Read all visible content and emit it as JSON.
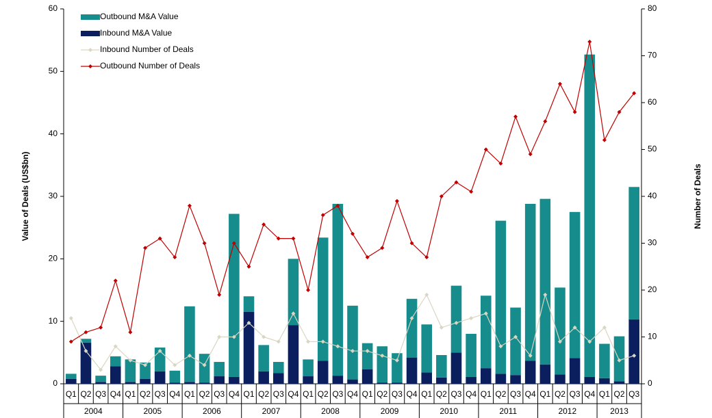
{
  "chart_data": {
    "type": "bar-line",
    "y_label": "Value of Deals (US$bn)",
    "y2_label": "Number of Deals",
    "categories": [
      "Q1",
      "Q2",
      "Q3",
      "Q4",
      "Q1",
      "Q2",
      "Q3",
      "Q4",
      "Q1",
      "Q2",
      "Q3",
      "Q4",
      "Q1",
      "Q2",
      "Q3",
      "Q4",
      "Q1",
      "Q2",
      "Q3",
      "Q4",
      "Q1",
      "Q2",
      "Q3",
      "Q4",
      "Q1",
      "Q2",
      "Q3",
      "Q4",
      "Q1",
      "Q2",
      "Q3",
      "Q4",
      "Q1",
      "Q2",
      "Q3",
      "Q4",
      "Q1",
      "Q2",
      "Q3"
    ],
    "category_groups": [
      "2004",
      "2005",
      "2006",
      "2007",
      "2008",
      "2009",
      "2010",
      "2011",
      "2012",
      "2013"
    ],
    "ylim": [
      0,
      60
    ],
    "yticks": [
      0,
      10,
      20,
      30,
      40,
      50,
      60
    ],
    "y2lim": [
      0,
      80
    ],
    "y2ticks": [
      0,
      10,
      20,
      30,
      40,
      50,
      60,
      70,
      80
    ],
    "legend": "upper left",
    "series": [
      {
        "name": "Outbound M&A Value",
        "type": "bar",
        "color": "#168c8c",
        "values": [
          0.8,
          0.6,
          1.0,
          1.6,
          3.6,
          2.6,
          3.8,
          1.9,
          12.1,
          4.6,
          2.3,
          26.1,
          2.5,
          4.2,
          1.8,
          10.6,
          2.7,
          19.7,
          27.5,
          11.8,
          4.2,
          5.8,
          4.7,
          9.4,
          7.7,
          3.6,
          10.7,
          6.9,
          11.6,
          24.5,
          10.8,
          25.1,
          26.5,
          13.9,
          23.4,
          51.6,
          5.5,
          7.2,
          21.2
        ]
      },
      {
        "name": "Inbound M&A Value",
        "type": "bar",
        "color": "#0b1f5e",
        "values": [
          0.8,
          6.6,
          0.3,
          2.8,
          0.3,
          0.8,
          2.0,
          0.2,
          0.3,
          0.2,
          1.2,
          1.1,
          11.5,
          2.0,
          1.7,
          9.4,
          1.2,
          3.7,
          1.3,
          0.7,
          2.3,
          0.2,
          0.2,
          4.2,
          1.8,
          1.0,
          5.0,
          1.1,
          2.5,
          1.6,
          1.4,
          3.7,
          3.1,
          1.5,
          4.1,
          1.1,
          0.9,
          0.4,
          10.3
        ]
      },
      {
        "name": "Inbound Number of Deals",
        "type": "line",
        "axis": "y2",
        "color": "#d9d6c3",
        "values": [
          14,
          7,
          3,
          8,
          5,
          4,
          7,
          4,
          6,
          4,
          10,
          10,
          13,
          10,
          9,
          15,
          9,
          9,
          8,
          7,
          7,
          6,
          5,
          14,
          19,
          12,
          13,
          14,
          15,
          8,
          10,
          6,
          19,
          9,
          12,
          9,
          12,
          5,
          6
        ]
      },
      {
        "name": "Outbound Number of Deals",
        "type": "line",
        "axis": "y2",
        "color": "#c00000",
        "values": [
          9,
          11,
          12,
          22,
          11,
          29,
          31,
          27,
          38,
          30,
          19,
          30,
          25,
          34,
          31,
          31,
          20,
          36,
          38,
          32,
          27,
          29,
          39,
          30,
          27,
          40,
          43,
          41,
          50,
          47,
          57,
          49,
          56,
          64,
          58,
          73,
          52,
          58,
          62
        ]
      }
    ]
  }
}
